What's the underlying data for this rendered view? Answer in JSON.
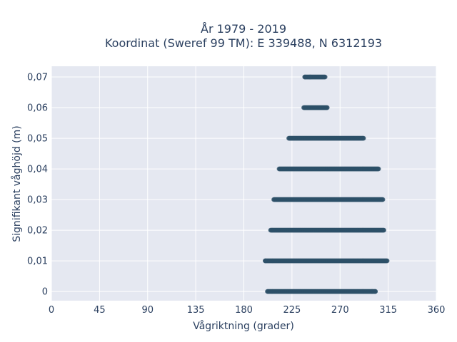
{
  "chart_data": {
    "type": "scatter",
    "title": [
      "År 1979 - 2019",
      "Koordinat (Sweref 99 TM): E 339488, N 6312193"
    ],
    "xlabel": "Vågriktning (grader)",
    "ylabel": "Signifikant våghöjd (m)",
    "xlim": [
      0,
      360
    ],
    "ylim": [
      -0.003,
      0.0735
    ],
    "x_ticks": [
      0,
      45,
      90,
      135,
      180,
      225,
      270,
      315,
      360
    ],
    "x_tick_labels": [
      "0",
      "45",
      "90",
      "135",
      "180",
      "225",
      "270",
      "315",
      "360"
    ],
    "y_ticks": [
      0,
      0.01,
      0.02,
      0.03,
      0.04,
      0.05,
      0.06,
      0.07
    ],
    "y_tick_labels": [
      "0",
      "0,01",
      "0,02",
      "0,03",
      "0,04",
      "0,05",
      "0,06",
      "0,07"
    ],
    "grid": true,
    "legend": false,
    "marker_color": "#2e5068",
    "plot_background": "#e5e8f1",
    "series": [
      {
        "bands": [
          {
            "y": 0.0,
            "x_min": 202,
            "x_max": 303
          },
          {
            "y": 0.01,
            "x_min": 200,
            "x_max": 314
          },
          {
            "y": 0.02,
            "x_min": 205,
            "x_max": 311
          },
          {
            "y": 0.03,
            "x_min": 208,
            "x_max": 310
          },
          {
            "y": 0.04,
            "x_min": 213,
            "x_max": 306
          },
          {
            "y": 0.05,
            "x_min": 222,
            "x_max": 292
          },
          {
            "y": 0.06,
            "x_min": 236,
            "x_max": 258
          },
          {
            "y": 0.07,
            "x_min": 237,
            "x_max": 256
          }
        ],
        "outliers": [
          {
            "x": 200,
            "y": 0.01
          },
          {
            "x": 237,
            "y": 0.07
          },
          {
            "x": 242,
            "y": 0.07
          },
          {
            "x": 300,
            "y": 0.0
          },
          {
            "x": 303,
            "y": 0.0
          }
        ]
      }
    ]
  }
}
